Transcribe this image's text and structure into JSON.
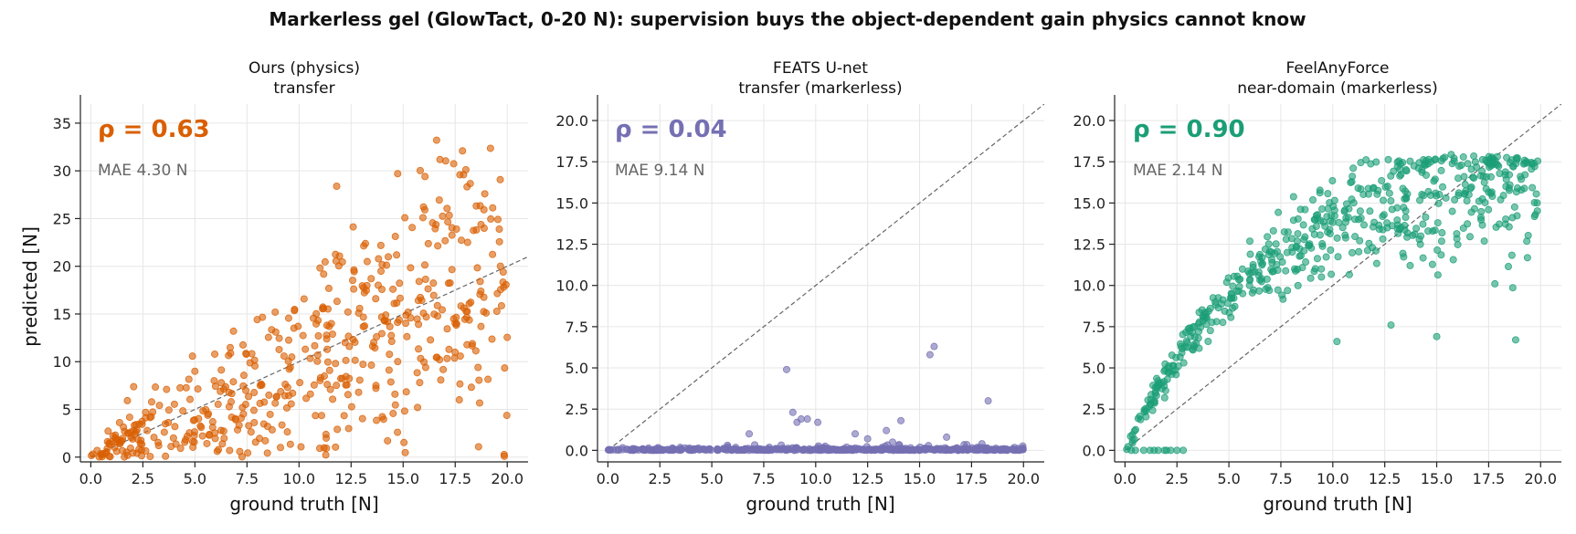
{
  "figure": {
    "suptitle": "Markerless gel (GlowTact, 0-20 N): supervision buys the object-dependent gain physics cannot know"
  },
  "chart_data": [
    {
      "type": "scatter",
      "title_line1": "Ours (physics)",
      "title_line2": "transfer",
      "xlabel": "ground truth [N]",
      "ylabel": "predicted [N]",
      "xlim": [
        -0.5,
        21
      ],
      "ylim": [
        -0.5,
        37
      ],
      "xticks": [
        "0.0",
        "2.5",
        "5.0",
        "7.5",
        "10.0",
        "12.5",
        "15.0",
        "17.5",
        "20.0"
      ],
      "yticks": [
        "0",
        "5",
        "10",
        "15",
        "20",
        "25",
        "30",
        "35"
      ],
      "rho_label": "ρ = 0.63",
      "mae_label": "MAE 4.30 N",
      "color": "#d95f02",
      "grid": true,
      "identity_line": true,
      "points": {
        "n": 520,
        "seed": 11,
        "model": "linear_noisy",
        "rho": 0.63,
        "mae": 4.3
      }
    },
    {
      "type": "scatter",
      "title_line1": "FEATS U-net",
      "title_line2": "transfer (markerless)",
      "xlabel": "ground truth [N]",
      "ylabel": "",
      "xlim": [
        -0.5,
        21
      ],
      "ylim": [
        -0.7,
        21
      ],
      "xticks": [
        "0.0",
        "2.5",
        "5.0",
        "7.5",
        "10.0",
        "12.5",
        "15.0",
        "17.5",
        "20.0"
      ],
      "yticks": [
        "0.0",
        "2.5",
        "5.0",
        "7.5",
        "10.0",
        "12.5",
        "15.0",
        "17.5",
        "20.0"
      ],
      "rho_label": "ρ = 0.04",
      "mae_label": "MAE 9.14 N",
      "color": "#7570b3",
      "grid": true,
      "identity_line": true,
      "points": {
        "n": 500,
        "seed": 23,
        "model": "near_zero",
        "rho": 0.04,
        "mae": 9.14,
        "outliers": [
          [
            8.6,
            4.9
          ],
          [
            15.5,
            5.8
          ],
          [
            15.7,
            6.3
          ],
          [
            18.3,
            3.0
          ],
          [
            8.9,
            2.3
          ],
          [
            9.3,
            1.9
          ],
          [
            9.1,
            1.7
          ],
          [
            10.1,
            1.7
          ],
          [
            9.6,
            1.9
          ],
          [
            14.1,
            1.8
          ],
          [
            13.4,
            1.2
          ],
          [
            11.9,
            1.0
          ],
          [
            6.8,
            1.0
          ],
          [
            16.3,
            0.8
          ],
          [
            12.5,
            0.7
          ],
          [
            13.7,
            0.5
          ],
          [
            18.0,
            0.4
          ]
        ]
      }
    },
    {
      "type": "scatter",
      "title_line1": "FeelAnyForce",
      "title_line2": "near-domain (markerless)",
      "xlabel": "ground truth [N]",
      "ylabel": "",
      "xlim": [
        -0.5,
        21
      ],
      "ylim": [
        -0.7,
        21
      ],
      "xticks": [
        "0.0",
        "2.5",
        "5.0",
        "7.5",
        "10.0",
        "12.5",
        "15.0",
        "17.5",
        "20.0"
      ],
      "yticks": [
        "0.0",
        "2.5",
        "5.0",
        "7.5",
        "10.0",
        "12.5",
        "15.0",
        "17.5",
        "20.0"
      ],
      "rho_label": "ρ = 0.90",
      "mae_label": "MAE 2.14 N",
      "color": "#1b9e77",
      "grid": true,
      "identity_line": true,
      "points": {
        "n": 560,
        "seed": 37,
        "model": "saturating",
        "rho": 0.9,
        "mae": 2.14,
        "outliers": [
          [
            0.5,
            0.0
          ],
          [
            0.9,
            0.0
          ],
          [
            1.2,
            0.0
          ],
          [
            1.6,
            0.0
          ],
          [
            1.9,
            0.0
          ],
          [
            2.2,
            0.0
          ],
          [
            2.5,
            0.0
          ],
          [
            2.8,
            0.0
          ],
          [
            0.3,
            0.0
          ],
          [
            1.4,
            0.0
          ],
          [
            2.0,
            0.0
          ],
          [
            10.2,
            6.6
          ],
          [
            15.0,
            6.9
          ],
          [
            18.8,
            6.7
          ],
          [
            17.8,
            10.1
          ],
          [
            12.8,
            7.6
          ]
        ]
      }
    }
  ]
}
